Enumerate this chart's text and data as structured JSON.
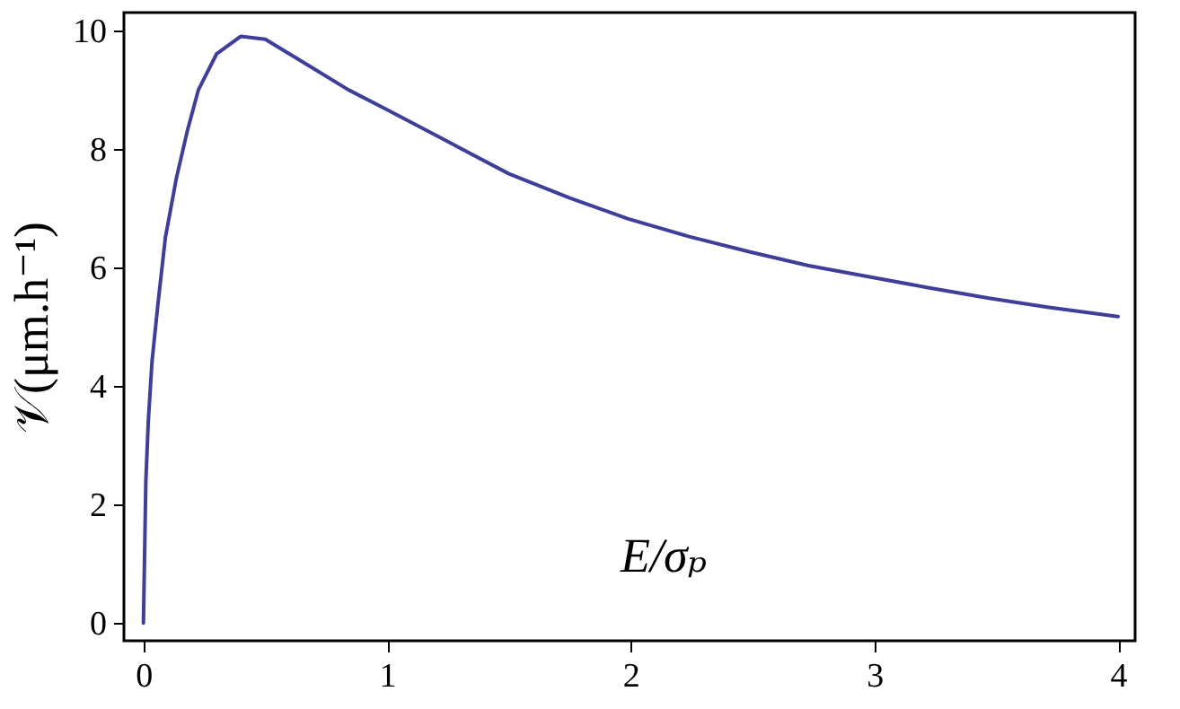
{
  "chart_data": {
    "type": "line",
    "xlabel": "E/σₚ",
    "ylabel": "𝒱(μm.h⁻¹)",
    "x": [
      0,
      0.01,
      0.02,
      0.035,
      0.06,
      0.09,
      0.135,
      0.18,
      0.226,
      0.3,
      0.4,
      0.5,
      0.64,
      0.84,
      1.0,
      1.26,
      1.5,
      1.75,
      1.99,
      2.24,
      2.49,
      2.73,
      2.98,
      3.22,
      3.47,
      3.71,
      4.0
    ],
    "series": [
      {
        "color": "#3f3f9a",
        "values": [
          0,
          2.4,
          3.4,
          4.4,
          5.4,
          6.5,
          7.5,
          8.3,
          9.0,
          9.6,
          9.9,
          9.85,
          9.5,
          9.0,
          8.66,
          8.1,
          7.58,
          7.17,
          6.82,
          6.52,
          6.26,
          6.03,
          5.84,
          5.66,
          5.48,
          5.33,
          5.17
        ]
      }
    ],
    "xlim": [
      -0.08,
      4.07
    ],
    "ylim": [
      -0.3,
      10.3
    ],
    "xticks": [
      0,
      1,
      2,
      3,
      4
    ],
    "yticks": [
      0,
      2,
      4,
      6,
      8,
      10
    ],
    "grid": false,
    "legend": false,
    "marker": "none",
    "line_style": "solid"
  }
}
